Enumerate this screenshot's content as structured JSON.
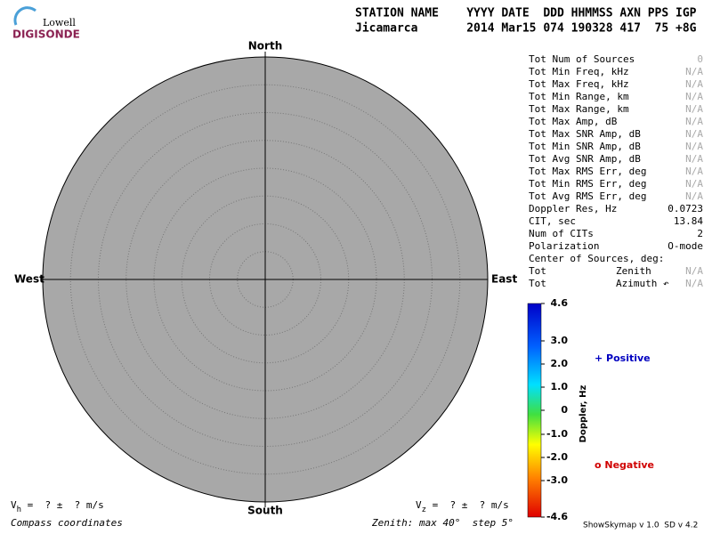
{
  "logo": {
    "top": "Lowell",
    "bottom": "DIGISONDE"
  },
  "header": {
    "line1": "STATION NAME    YYYY DATE  DDD HHMMSS AXN PPS IGP",
    "line2": "Jicamarca       2014 Mar15 074 190328 417  75 +8G"
  },
  "skymap": {
    "north": "North",
    "south": "South",
    "west": "West",
    "east": "East"
  },
  "stats": [
    {
      "label": "Tot Num of Sources",
      "value": "0",
      "muted": true
    },
    {
      "label": "Tot Min Freq, kHz",
      "value": "N/A",
      "muted": true
    },
    {
      "label": "Tot Max Freq, kHz",
      "value": "N/A",
      "muted": true
    },
    {
      "label": "Tot Min Range, km",
      "value": "N/A",
      "muted": true
    },
    {
      "label": "Tot Max Range, km",
      "value": "N/A",
      "muted": true
    },
    {
      "label": "Tot Max Amp, dB",
      "value": "N/A",
      "muted": true
    },
    {
      "label": "Tot Max SNR Amp, dB",
      "value": "N/A",
      "muted": true
    },
    {
      "label": "Tot Min SNR Amp, dB",
      "value": "N/A",
      "muted": true
    },
    {
      "label": "Tot Avg SNR Amp, dB",
      "value": "N/A",
      "muted": true
    },
    {
      "label": "Tot Max RMS Err, deg",
      "value": "N/A",
      "muted": true
    },
    {
      "label": "Tot Min RMS Err, deg",
      "value": "N/A",
      "muted": true
    },
    {
      "label": "Tot Avg RMS Err, deg",
      "value": "N/A",
      "muted": true
    },
    {
      "label": "Doppler Res, Hz",
      "value": "0.0723",
      "muted": false
    },
    {
      "label": "CIT, sec",
      "value": "13.84",
      "muted": false
    },
    {
      "label": "Num of CITs",
      "value": "2",
      "muted": false
    },
    {
      "label": "Polarization",
      "value": "O-mode",
      "muted": false
    },
    {
      "label": "Center of Sources, deg:"
    },
    {
      "label": "Tot",
      "mid": "Zenith",
      "value": "N/A",
      "muted": true
    },
    {
      "label": "Tot",
      "mid": "Azimuth ↶",
      "value": "N/A",
      "muted": true
    }
  ],
  "colorbar": {
    "title": "Doppler, Hz",
    "ticks": [
      "4.6",
      "3.0",
      "2.0",
      "1.0",
      "0",
      "-1.0",
      "-2.0",
      "-3.0",
      "-4.6"
    ]
  },
  "legend": {
    "positive": "+ Positive",
    "negative": "o Negative"
  },
  "footer": {
    "vh": {
      "symbol": "V",
      "sub": "h",
      "text": " =  ? ±  ? m/s"
    },
    "vz": {
      "symbol": "V",
      "sub": "z",
      "text": " =  ? ±  ? m/s"
    },
    "coords": "Compass coordinates",
    "zenith": "Zenith: max 40°  step 5°",
    "version": "ShowSkymap v 1.0  SD v 4.2"
  }
}
